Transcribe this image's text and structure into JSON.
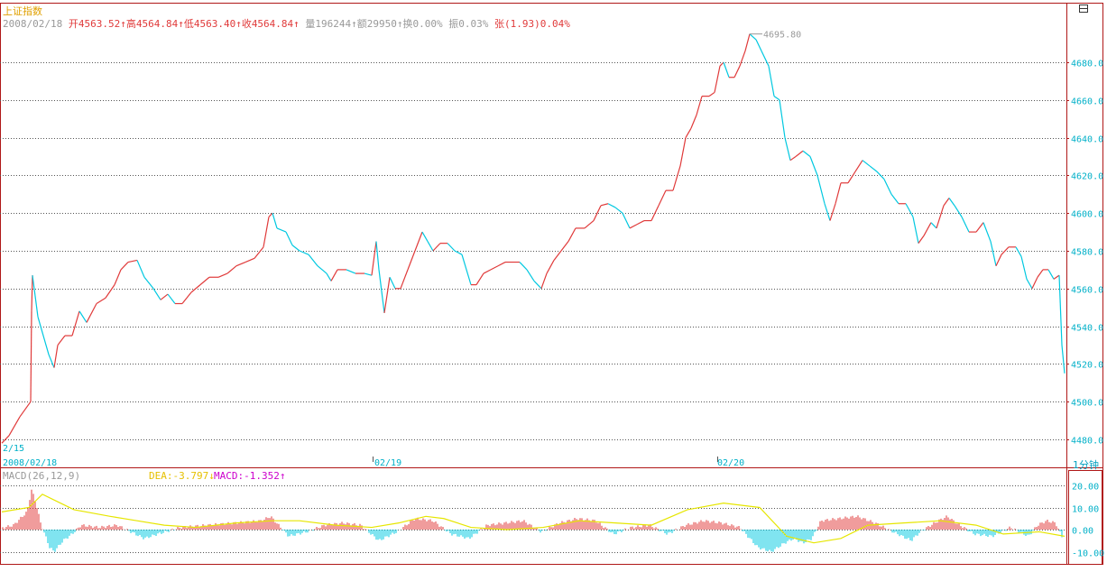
{
  "header": {
    "index_name": "上证指数",
    "date": "2008/02/18",
    "open_label": "开",
    "open": "4563.52",
    "high_label": "高",
    "high": "4564.84",
    "low_label": "低",
    "low": "4563.40",
    "close_label": "收",
    "close": "4564.84",
    "volume_label": "量",
    "volume": "196244",
    "amount_label": "额",
    "amount": "29950",
    "turnover_label": "换",
    "turnover": "0.00%",
    "amplitude_label": "振",
    "amplitude": "0.03%",
    "change_label": "张",
    "change": "(1.93)",
    "change_pct": "0.04%",
    "arrow": "↑"
  },
  "timeframe": "1分钟",
  "colors": {
    "up": "#e03a3a",
    "down": "#00c8e0",
    "grid": "#555555",
    "border": "#b01818",
    "diff": "#e6e600",
    "macd_label": "#cc00cc",
    "axis_text": "#00b0c8",
    "title": "#e0a000"
  },
  "chart_data": [
    {
      "type": "candlestick",
      "ylim": [
        4470,
        4700
      ],
      "y_ticks": [
        4480.0,
        4500.0,
        4520.0,
        4540.0,
        4560.0,
        4580.0,
        4600.0,
        4620.0,
        4640.0,
        4660.0,
        4680.0
      ],
      "x_labels": [
        "2/15",
        "2008/02/18",
        "02/19",
        "02/20"
      ],
      "max_annotation": "4695.80",
      "path": [
        [
          0,
          4478
        ],
        [
          8,
          4482
        ],
        [
          20,
          4492
        ],
        [
          32,
          4500
        ],
        [
          33,
          4548
        ],
        [
          34,
          4567
        ],
        [
          40,
          4545
        ],
        [
          52,
          4525
        ],
        [
          58,
          4518
        ],
        [
          62,
          4530
        ],
        [
          70,
          4535
        ],
        [
          78,
          4535
        ],
        [
          86,
          4548
        ],
        [
          94,
          4542
        ],
        [
          105,
          4552
        ],
        [
          115,
          4555
        ],
        [
          125,
          4562
        ],
        [
          132,
          4570
        ],
        [
          140,
          4574
        ],
        [
          150,
          4575
        ],
        [
          158,
          4566
        ],
        [
          168,
          4560
        ],
        [
          176,
          4554
        ],
        [
          184,
          4557
        ],
        [
          192,
          4552
        ],
        [
          200,
          4552
        ],
        [
          210,
          4558
        ],
        [
          220,
          4562
        ],
        [
          230,
          4566
        ],
        [
          240,
          4566
        ],
        [
          250,
          4568
        ],
        [
          260,
          4572
        ],
        [
          270,
          4574
        ],
        [
          280,
          4576
        ],
        [
          290,
          4582
        ],
        [
          296,
          4598
        ],
        [
          300,
          4600
        ],
        [
          305,
          4592
        ],
        [
          315,
          4590
        ],
        [
          322,
          4583
        ],
        [
          330,
          4580
        ],
        [
          340,
          4578
        ],
        [
          350,
          4572
        ],
        [
          360,
          4568
        ],
        [
          365,
          4564
        ],
        [
          372,
          4570
        ],
        [
          382,
          4570
        ],
        [
          392,
          4568
        ],
        [
          402,
          4568
        ],
        [
          410,
          4567
        ],
        [
          415,
          4585
        ],
        [
          418,
          4570
        ],
        [
          424,
          4547
        ],
        [
          430,
          4566
        ],
        [
          436,
          4560
        ],
        [
          442,
          4560
        ],
        [
          450,
          4570
        ],
        [
          458,
          4580
        ],
        [
          466,
          4590
        ],
        [
          472,
          4585
        ],
        [
          478,
          4580
        ],
        [
          486,
          4584
        ],
        [
          494,
          4584
        ],
        [
          502,
          4580
        ],
        [
          510,
          4578
        ],
        [
          520,
          4562
        ],
        [
          526,
          4562
        ],
        [
          534,
          4568
        ],
        [
          542,
          4570
        ],
        [
          550,
          4572
        ],
        [
          558,
          4574
        ],
        [
          566,
          4574
        ],
        [
          574,
          4574
        ],
        [
          582,
          4570
        ],
        [
          590,
          4564
        ],
        [
          598,
          4560
        ],
        [
          604,
          4568
        ],
        [
          612,
          4575
        ],
        [
          620,
          4580
        ],
        [
          628,
          4585
        ],
        [
          636,
          4592
        ],
        [
          646,
          4592
        ],
        [
          656,
          4596
        ],
        [
          664,
          4604
        ],
        [
          672,
          4605
        ],
        [
          680,
          4603
        ],
        [
          688,
          4600
        ],
        [
          696,
          4592
        ],
        [
          704,
          4594
        ],
        [
          712,
          4596
        ],
        [
          720,
          4596
        ],
        [
          728,
          4604
        ],
        [
          736,
          4612
        ],
        [
          744,
          4612
        ],
        [
          752,
          4625
        ],
        [
          758,
          4640
        ],
        [
          764,
          4645
        ],
        [
          770,
          4652
        ],
        [
          776,
          4662
        ],
        [
          784,
          4662
        ],
        [
          790,
          4664
        ],
        [
          796,
          4678
        ],
        [
          800,
          4680
        ],
        [
          806,
          4672
        ],
        [
          812,
          4672
        ],
        [
          818,
          4678
        ],
        [
          824,
          4686
        ],
        [
          829,
          4695
        ],
        [
          836,
          4692
        ],
        [
          842,
          4686
        ],
        [
          850,
          4678
        ],
        [
          856,
          4662
        ],
        [
          862,
          4660
        ],
        [
          868,
          4640
        ],
        [
          874,
          4628
        ],
        [
          880,
          4630
        ],
        [
          888,
          4633
        ],
        [
          896,
          4630
        ],
        [
          904,
          4620
        ],
        [
          912,
          4605
        ],
        [
          918,
          4596
        ],
        [
          924,
          4605
        ],
        [
          930,
          4616
        ],
        [
          938,
          4616
        ],
        [
          946,
          4622
        ],
        [
          954,
          4628
        ],
        [
          962,
          4625
        ],
        [
          970,
          4622
        ],
        [
          978,
          4618
        ],
        [
          986,
          4610
        ],
        [
          994,
          4605
        ],
        [
          1002,
          4605
        ],
        [
          1010,
          4598
        ],
        [
          1016,
          4584
        ],
        [
          1022,
          4588
        ],
        [
          1030,
          4595
        ],
        [
          1036,
          4592
        ],
        [
          1044,
          4604
        ],
        [
          1050,
          4608
        ],
        [
          1056,
          4604
        ],
        [
          1064,
          4598
        ],
        [
          1072,
          4590
        ],
        [
          1080,
          4590
        ],
        [
          1088,
          4595
        ],
        [
          1096,
          4585
        ],
        [
          1102,
          4572
        ],
        [
          1108,
          4578
        ],
        [
          1116,
          4582
        ],
        [
          1124,
          4582
        ],
        [
          1130,
          4577
        ],
        [
          1136,
          4565
        ],
        [
          1142,
          4560
        ],
        [
          1148,
          4566
        ],
        [
          1154,
          4570
        ],
        [
          1160,
          4570
        ],
        [
          1166,
          4565
        ],
        [
          1172,
          4567
        ],
        [
          1175,
          4530
        ],
        [
          1178,
          4515
        ]
      ]
    },
    {
      "type": "macd",
      "params": "(26,12,9)",
      "title": "MACD",
      "diff_label": "DEA",
      "dea_value": "-3.797",
      "dea_arrow": "↓",
      "macd_label": "MACD",
      "macd_value": "-1.352",
      "macd_arrow": "↑",
      "ylim": [
        -14,
        26
      ],
      "y_ticks": [
        20.0,
        10.0,
        0.0,
        -10.0
      ],
      "diff_path": [
        [
          0,
          8
        ],
        [
          30,
          10
        ],
        [
          45,
          16
        ],
        [
          60,
          13
        ],
        [
          80,
          9
        ],
        [
          120,
          6
        ],
        [
          150,
          4
        ],
        [
          180,
          2
        ],
        [
          215,
          1
        ],
        [
          260,
          3
        ],
        [
          300,
          4
        ],
        [
          330,
          4
        ],
        [
          370,
          2
        ],
        [
          410,
          1
        ],
        [
          440,
          3
        ],
        [
          470,
          6
        ],
        [
          490,
          5
        ],
        [
          520,
          1
        ],
        [
          560,
          0
        ],
        [
          600,
          1
        ],
        [
          640,
          4
        ],
        [
          680,
          3
        ],
        [
          720,
          2
        ],
        [
          760,
          9
        ],
        [
          800,
          12
        ],
        [
          840,
          10
        ],
        [
          870,
          -3
        ],
        [
          900,
          -6
        ],
        [
          930,
          -4
        ],
        [
          960,
          2
        ],
        [
          1000,
          3
        ],
        [
          1040,
          4
        ],
        [
          1080,
          2
        ],
        [
          1110,
          -2
        ],
        [
          1150,
          -1
        ],
        [
          1178,
          -3
        ]
      ],
      "macd_bars": [
        [
          5,
          1
        ],
        [
          15,
          2
        ],
        [
          30,
          8
        ],
        [
          35,
          18
        ],
        [
          40,
          12
        ],
        [
          45,
          3
        ],
        [
          55,
          -8
        ],
        [
          60,
          -10
        ],
        [
          70,
          -5
        ],
        [
          80,
          -2
        ],
        [
          90,
          2
        ],
        [
          110,
          1
        ],
        [
          130,
          2
        ],
        [
          150,
          -2
        ],
        [
          160,
          -4
        ],
        [
          175,
          -2
        ],
        [
          200,
          1
        ],
        [
          230,
          2
        ],
        [
          260,
          3
        ],
        [
          290,
          4
        ],
        [
          300,
          6
        ],
        [
          320,
          -3
        ],
        [
          340,
          -1
        ],
        [
          360,
          2
        ],
        [
          380,
          3
        ],
        [
          400,
          2
        ],
        [
          420,
          -5
        ],
        [
          440,
          -1
        ],
        [
          460,
          5
        ],
        [
          480,
          4
        ],
        [
          500,
          -2
        ],
        [
          520,
          -4
        ],
        [
          540,
          2
        ],
        [
          560,
          3
        ],
        [
          580,
          4
        ],
        [
          600,
          -1
        ],
        [
          620,
          3
        ],
        [
          640,
          5
        ],
        [
          660,
          4
        ],
        [
          680,
          -2
        ],
        [
          700,
          1
        ],
        [
          720,
          2
        ],
        [
          740,
          -2
        ],
        [
          760,
          2
        ],
        [
          780,
          4
        ],
        [
          800,
          3
        ],
        [
          820,
          1
        ],
        [
          840,
          -8
        ],
        [
          855,
          -10
        ],
        [
          870,
          -6
        ],
        [
          880,
          -4
        ],
        [
          890,
          -6
        ],
        [
          900,
          -4
        ],
        [
          910,
          4
        ],
        [
          930,
          5
        ],
        [
          950,
          6
        ],
        [
          970,
          3
        ],
        [
          990,
          -1
        ],
        [
          1000,
          -3
        ],
        [
          1010,
          -5
        ],
        [
          1020,
          -1
        ],
        [
          1040,
          4
        ],
        [
          1050,
          6
        ],
        [
          1060,
          3
        ],
        [
          1080,
          -2
        ],
        [
          1100,
          -3
        ],
        [
          1120,
          1
        ],
        [
          1140,
          -3
        ],
        [
          1150,
          2
        ],
        [
          1160,
          4
        ],
        [
          1170,
          3
        ],
        [
          1178,
          -4
        ]
      ]
    }
  ]
}
